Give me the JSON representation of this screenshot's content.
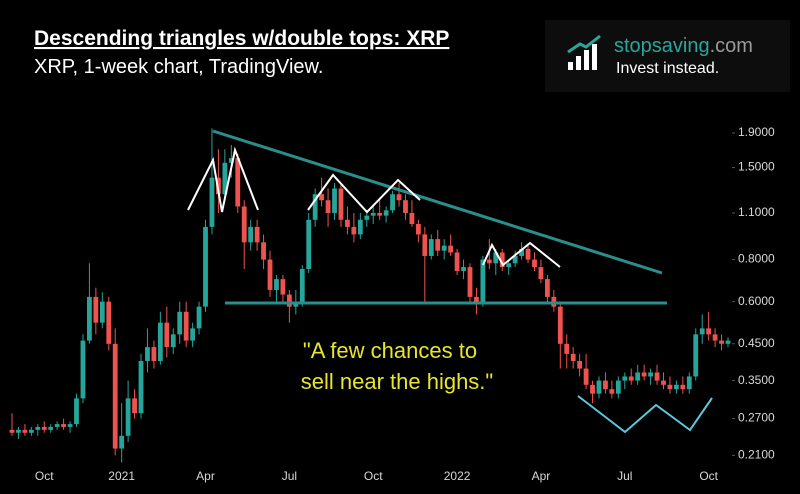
{
  "chart_data": {
    "type": "candlestick",
    "title": "Descending triangles w/double tops: XRP",
    "subtitle": "XRP, 1-week chart, TradingView.",
    "annotation": [
      "\"A few chances to",
      "sell near the highs.\""
    ],
    "log_scale": true,
    "up_color": "#26a69a",
    "down_color": "#ef5350",
    "ylim": [
      0.19,
      2.3
    ],
    "yticks": [
      {
        "value": 1.9,
        "label": "1.9000"
      },
      {
        "value": 1.5,
        "label": "1.5000"
      },
      {
        "value": 1.1,
        "label": "1.1000"
      },
      {
        "value": 0.8,
        "label": "0.8000"
      },
      {
        "value": 0.6,
        "label": "0.6000"
      },
      {
        "value": 0.45,
        "label": "0.4500"
      },
      {
        "value": 0.35,
        "label": "0.3500"
      },
      {
        "value": 0.27,
        "label": "0.2700"
      },
      {
        "value": 0.21,
        "label": "0.2100"
      }
    ],
    "categories": [
      null,
      null,
      null,
      null,
      null,
      "Oct",
      null,
      null,
      null,
      null,
      null,
      null,
      null,
      null,
      null,
      null,
      null,
      "2021",
      null,
      null,
      null,
      null,
      null,
      null,
      null,
      null,
      null,
      null,
      null,
      null,
      "Apr",
      null,
      null,
      null,
      null,
      null,
      null,
      null,
      null,
      null,
      null,
      null,
      null,
      "Jul",
      null,
      null,
      null,
      null,
      null,
      null,
      null,
      null,
      null,
      null,
      null,
      null,
      "Oct",
      null,
      null,
      null,
      null,
      null,
      null,
      null,
      null,
      null,
      null,
      null,
      null,
      "2022",
      null,
      null,
      null,
      null,
      null,
      null,
      null,
      null,
      null,
      null,
      null,
      null,
      "Apr",
      null,
      null,
      null,
      null,
      null,
      null,
      null,
      null,
      null,
      null,
      null,
      null,
      "Jul",
      null,
      null,
      null,
      null,
      null,
      null,
      null,
      null,
      null,
      null,
      null,
      null,
      "Oct",
      null,
      null,
      null
    ],
    "candles": [
      {
        "open": 0.25,
        "high": 0.28,
        "low": 0.24,
        "close": 0.245
      },
      {
        "open": 0.245,
        "high": 0.255,
        "low": 0.235,
        "close": 0.25
      },
      {
        "open": 0.25,
        "high": 0.26,
        "low": 0.24,
        "close": 0.245
      },
      {
        "open": 0.245,
        "high": 0.255,
        "low": 0.24,
        "close": 0.25
      },
      {
        "open": 0.25,
        "high": 0.26,
        "low": 0.24,
        "close": 0.255
      },
      {
        "open": 0.255,
        "high": 0.265,
        "low": 0.245,
        "close": 0.25
      },
      {
        "open": 0.25,
        "high": 0.26,
        "low": 0.245,
        "close": 0.255
      },
      {
        "open": 0.255,
        "high": 0.265,
        "low": 0.25,
        "close": 0.26
      },
      {
        "open": 0.26,
        "high": 0.27,
        "low": 0.25,
        "close": 0.255
      },
      {
        "open": 0.255,
        "high": 0.265,
        "low": 0.245,
        "close": 0.26
      },
      {
        "open": 0.26,
        "high": 0.32,
        "low": 0.255,
        "close": 0.31
      },
      {
        "open": 0.31,
        "high": 0.48,
        "low": 0.3,
        "close": 0.46
      },
      {
        "open": 0.46,
        "high": 0.78,
        "low": 0.45,
        "close": 0.62
      },
      {
        "open": 0.62,
        "high": 0.66,
        "low": 0.48,
        "close": 0.52
      },
      {
        "open": 0.52,
        "high": 0.64,
        "low": 0.5,
        "close": 0.6
      },
      {
        "open": 0.6,
        "high": 0.62,
        "low": 0.43,
        "close": 0.45
      },
      {
        "open": 0.45,
        "high": 0.5,
        "low": 0.21,
        "close": 0.22
      },
      {
        "open": 0.22,
        "high": 0.3,
        "low": 0.2,
        "close": 0.24
      },
      {
        "open": 0.24,
        "high": 0.35,
        "low": 0.23,
        "close": 0.31
      },
      {
        "open": 0.31,
        "high": 0.33,
        "low": 0.27,
        "close": 0.28
      },
      {
        "open": 0.28,
        "high": 0.42,
        "low": 0.27,
        "close": 0.4
      },
      {
        "open": 0.4,
        "high": 0.5,
        "low": 0.37,
        "close": 0.44
      },
      {
        "open": 0.44,
        "high": 0.46,
        "low": 0.38,
        "close": 0.4
      },
      {
        "open": 0.4,
        "high": 0.56,
        "low": 0.39,
        "close": 0.52
      },
      {
        "open": 0.52,
        "high": 0.58,
        "low": 0.41,
        "close": 0.44
      },
      {
        "open": 0.44,
        "high": 0.5,
        "low": 0.42,
        "close": 0.48
      },
      {
        "open": 0.48,
        "high": 0.6,
        "low": 0.45,
        "close": 0.56
      },
      {
        "open": 0.56,
        "high": 0.6,
        "low": 0.44,
        "close": 0.46
      },
      {
        "open": 0.46,
        "high": 0.52,
        "low": 0.44,
        "close": 0.5
      },
      {
        "open": 0.5,
        "high": 0.6,
        "low": 0.48,
        "close": 0.58
      },
      {
        "open": 0.58,
        "high": 1.05,
        "low": 0.56,
        "close": 1.0
      },
      {
        "open": 1.0,
        "high": 1.96,
        "low": 0.95,
        "close": 1.4
      },
      {
        "open": 1.4,
        "high": 1.7,
        "low": 1.1,
        "close": 1.25
      },
      {
        "open": 1.25,
        "high": 1.7,
        "low": 1.2,
        "close": 1.55
      },
      {
        "open": 1.55,
        "high": 1.75,
        "low": 1.4,
        "close": 1.6
      },
      {
        "open": 1.6,
        "high": 1.65,
        "low": 1.1,
        "close": 1.15
      },
      {
        "open": 1.15,
        "high": 1.2,
        "low": 0.75,
        "close": 0.9
      },
      {
        "open": 0.9,
        "high": 1.05,
        "low": 0.85,
        "close": 1.0
      },
      {
        "open": 1.0,
        "high": 1.05,
        "low": 0.85,
        "close": 0.9
      },
      {
        "open": 0.9,
        "high": 0.95,
        "low": 0.75,
        "close": 0.8
      },
      {
        "open": 0.8,
        "high": 0.85,
        "low": 0.62,
        "close": 0.65
      },
      {
        "open": 0.65,
        "high": 0.72,
        "low": 0.6,
        "close": 0.7
      },
      {
        "open": 0.7,
        "high": 0.72,
        "low": 0.6,
        "close": 0.63
      },
      {
        "open": 0.63,
        "high": 0.65,
        "low": 0.52,
        "close": 0.58
      },
      {
        "open": 0.58,
        "high": 0.65,
        "low": 0.55,
        "close": 0.6
      },
      {
        "open": 0.6,
        "high": 0.77,
        "low": 0.58,
        "close": 0.75
      },
      {
        "open": 0.75,
        "high": 1.1,
        "low": 0.73,
        "close": 1.05
      },
      {
        "open": 1.05,
        "high": 1.3,
        "low": 1.0,
        "close": 1.25
      },
      {
        "open": 1.25,
        "high": 1.4,
        "low": 1.15,
        "close": 1.2
      },
      {
        "open": 1.2,
        "high": 1.3,
        "low": 1.0,
        "close": 1.1
      },
      {
        "open": 1.1,
        "high": 1.35,
        "low": 1.05,
        "close": 1.3
      },
      {
        "open": 1.3,
        "high": 1.35,
        "low": 1.0,
        "close": 1.05
      },
      {
        "open": 1.05,
        "high": 1.15,
        "low": 0.95,
        "close": 1.0
      },
      {
        "open": 1.0,
        "high": 1.1,
        "low": 0.9,
        "close": 0.95
      },
      {
        "open": 0.95,
        "high": 1.1,
        "low": 0.92,
        "close": 1.05
      },
      {
        "open": 1.05,
        "high": 1.12,
        "low": 1.0,
        "close": 1.08
      },
      {
        "open": 1.08,
        "high": 1.15,
        "low": 1.02,
        "close": 1.1
      },
      {
        "open": 1.1,
        "high": 1.2,
        "low": 1.05,
        "close": 1.08
      },
      {
        "open": 1.08,
        "high": 1.15,
        "low": 1.03,
        "close": 1.12
      },
      {
        "open": 1.12,
        "high": 1.28,
        "low": 1.1,
        "close": 1.25
      },
      {
        "open": 1.25,
        "high": 1.35,
        "low": 1.15,
        "close": 1.2
      },
      {
        "open": 1.2,
        "high": 1.25,
        "low": 1.05,
        "close": 1.1
      },
      {
        "open": 1.1,
        "high": 1.2,
        "low": 1.0,
        "close": 1.02
      },
      {
        "open": 1.02,
        "high": 1.05,
        "low": 0.9,
        "close": 0.95
      },
      {
        "open": 0.95,
        "high": 1.0,
        "low": 0.6,
        "close": 0.82
      },
      {
        "open": 0.82,
        "high": 0.95,
        "low": 0.8,
        "close": 0.92
      },
      {
        "open": 0.92,
        "high": 0.98,
        "low": 0.82,
        "close": 0.85
      },
      {
        "open": 0.85,
        "high": 0.92,
        "low": 0.8,
        "close": 0.88
      },
      {
        "open": 0.88,
        "high": 0.95,
        "low": 0.82,
        "close": 0.84
      },
      {
        "open": 0.84,
        "high": 0.86,
        "low": 0.72,
        "close": 0.74
      },
      {
        "open": 0.74,
        "high": 0.8,
        "low": 0.7,
        "close": 0.76
      },
      {
        "open": 0.76,
        "high": 0.78,
        "low": 0.6,
        "close": 0.62
      },
      {
        "open": 0.62,
        "high": 0.66,
        "low": 0.55,
        "close": 0.6
      },
      {
        "open": 0.6,
        "high": 0.82,
        "low": 0.58,
        "close": 0.8
      },
      {
        "open": 0.8,
        "high": 0.92,
        "low": 0.75,
        "close": 0.78
      },
      {
        "open": 0.78,
        "high": 0.86,
        "low": 0.72,
        "close": 0.84
      },
      {
        "open": 0.84,
        "high": 0.86,
        "low": 0.74,
        "close": 0.76
      },
      {
        "open": 0.76,
        "high": 0.8,
        "low": 0.72,
        "close": 0.78
      },
      {
        "open": 0.78,
        "high": 0.85,
        "low": 0.76,
        "close": 0.82
      },
      {
        "open": 0.82,
        "high": 0.9,
        "low": 0.8,
        "close": 0.86
      },
      {
        "open": 0.86,
        "high": 0.88,
        "low": 0.78,
        "close": 0.8
      },
      {
        "open": 0.8,
        "high": 0.84,
        "low": 0.74,
        "close": 0.76
      },
      {
        "open": 0.76,
        "high": 0.8,
        "low": 0.68,
        "close": 0.7
      },
      {
        "open": 0.7,
        "high": 0.72,
        "low": 0.6,
        "close": 0.62
      },
      {
        "open": 0.62,
        "high": 0.65,
        "low": 0.56,
        "close": 0.58
      },
      {
        "open": 0.58,
        "high": 0.6,
        "low": 0.38,
        "close": 0.45
      },
      {
        "open": 0.45,
        "high": 0.48,
        "low": 0.38,
        "close": 0.42
      },
      {
        "open": 0.42,
        "high": 0.44,
        "low": 0.38,
        "close": 0.4
      },
      {
        "open": 0.4,
        "high": 0.42,
        "low": 0.36,
        "close": 0.38
      },
      {
        "open": 0.38,
        "high": 0.42,
        "low": 0.33,
        "close": 0.34
      },
      {
        "open": 0.34,
        "high": 0.35,
        "low": 0.3,
        "close": 0.32
      },
      {
        "open": 0.32,
        "high": 0.36,
        "low": 0.31,
        "close": 0.35
      },
      {
        "open": 0.35,
        "high": 0.37,
        "low": 0.32,
        "close": 0.33
      },
      {
        "open": 0.33,
        "high": 0.35,
        "low": 0.31,
        "close": 0.32
      },
      {
        "open": 0.32,
        "high": 0.36,
        "low": 0.31,
        "close": 0.35
      },
      {
        "open": 0.35,
        "high": 0.37,
        "low": 0.33,
        "close": 0.36
      },
      {
        "open": 0.36,
        "high": 0.38,
        "low": 0.34,
        "close": 0.35
      },
      {
        "open": 0.35,
        "high": 0.39,
        "low": 0.34,
        "close": 0.37
      },
      {
        "open": 0.37,
        "high": 0.39,
        "low": 0.35,
        "close": 0.36
      },
      {
        "open": 0.36,
        "high": 0.38,
        "low": 0.34,
        "close": 0.37
      },
      {
        "open": 0.37,
        "high": 0.39,
        "low": 0.34,
        "close": 0.35
      },
      {
        "open": 0.35,
        "high": 0.37,
        "low": 0.33,
        "close": 0.34
      },
      {
        "open": 0.34,
        "high": 0.36,
        "low": 0.32,
        "close": 0.33
      },
      {
        "open": 0.33,
        "high": 0.35,
        "low": 0.32,
        "close": 0.34
      },
      {
        "open": 0.34,
        "high": 0.36,
        "low": 0.32,
        "close": 0.33
      },
      {
        "open": 0.33,
        "high": 0.37,
        "low": 0.32,
        "close": 0.36
      },
      {
        "open": 0.36,
        "high": 0.5,
        "low": 0.35,
        "close": 0.48
      },
      {
        "open": 0.48,
        "high": 0.55,
        "low": 0.45,
        "close": 0.5
      },
      {
        "open": 0.5,
        "high": 0.56,
        "low": 0.46,
        "close": 0.48
      },
      {
        "open": 0.48,
        "high": 0.5,
        "low": 0.44,
        "close": 0.46
      },
      {
        "open": 0.46,
        "high": 0.48,
        "low": 0.43,
        "close": 0.45
      },
      {
        "open": 0.45,
        "high": 0.47,
        "low": 0.44,
        "close": 0.46
      }
    ]
  },
  "logo": {
    "brand": "stopsaving",
    "suffix": ".com",
    "tagline": "Invest instead."
  }
}
